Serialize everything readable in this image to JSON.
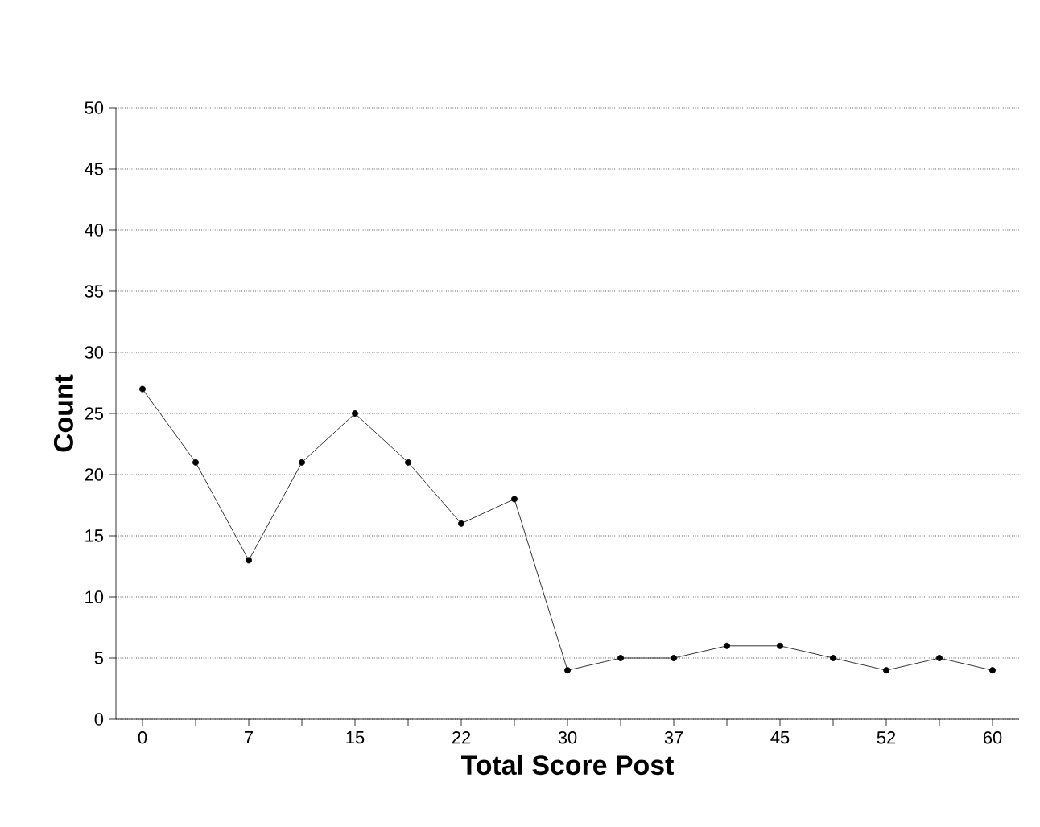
{
  "chart_data": {
    "type": "line",
    "xlabel": "Total Score Post",
    "ylabel": "Count",
    "categories": [
      "0",
      null,
      "7",
      null,
      "15",
      null,
      "22",
      null,
      "30",
      null,
      "37",
      null,
      "45",
      null,
      "52",
      null,
      "60"
    ],
    "values": [
      27,
      21,
      13,
      21,
      25,
      21,
      16,
      18,
      4,
      5,
      5,
      6,
      6,
      5,
      4,
      5,
      4
    ],
    "color": "#000000",
    "ylim": [
      0,
      50
    ],
    "yticks": [
      0,
      5,
      10,
      15,
      20,
      25,
      30,
      35,
      40,
      45,
      50
    ],
    "grid": "y",
    "marker": "circle",
    "line_style": "solid"
  }
}
